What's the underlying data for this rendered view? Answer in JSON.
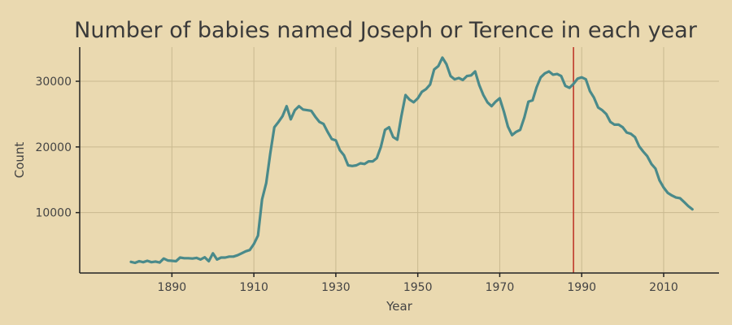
{
  "colors": {
    "background": "#ead9b0",
    "series": "#4a8a8a",
    "refline": "#c0392b",
    "grid": "#c9b98f"
  },
  "chart_data": {
    "type": "line",
    "title": "Number of babies named Joseph or Terence in each year",
    "xlabel": "Year",
    "ylabel": "Count",
    "xlim": [
      1867.5,
      2023.5
    ],
    "ylim": [
      800,
      35200
    ],
    "xticks": [
      1890,
      1910,
      1930,
      1950,
      1970,
      1990,
      2010
    ],
    "yticks": [
      10000,
      20000,
      30000
    ],
    "xtick_labels": [
      "1890",
      "1910",
      "1930",
      "1950",
      "1970",
      "1990",
      "2010"
    ],
    "ytick_labels": [
      "10000",
      "20000",
      "30000"
    ],
    "grid": true,
    "reference_line_x": 1988,
    "series": [
      {
        "x": [
          1880,
          1881,
          1882,
          1883,
          1884,
          1885,
          1886,
          1887,
          1888,
          1889,
          1890,
          1891,
          1892,
          1893,
          1894,
          1895,
          1896,
          1897,
          1898,
          1899,
          1900,
          1901,
          1902,
          1903,
          1904,
          1905,
          1906,
          1907,
          1908,
          1909,
          1910,
          1911,
          1912,
          1913,
          1914,
          1915,
          1916,
          1917,
          1918,
          1919,
          1920,
          1921,
          1922,
          1923,
          1924,
          1925,
          1926,
          1927,
          1928,
          1929,
          1930,
          1931,
          1932,
          1933,
          1934,
          1935,
          1936,
          1937,
          1938,
          1939,
          1940,
          1941,
          1942,
          1943,
          1944,
          1945,
          1946,
          1947,
          1948,
          1949,
          1950,
          1951,
          1952,
          1953,
          1954,
          1955,
          1956,
          1957,
          1958,
          1959,
          1960,
          1961,
          1962,
          1963,
          1964,
          1965,
          1966,
          1967,
          1968,
          1969,
          1970,
          1971,
          1972,
          1973,
          1974,
          1975,
          1976,
          1977,
          1978,
          1979,
          1980,
          1981,
          1982,
          1983,
          1984,
          1985,
          1986,
          1987,
          1988,
          1989,
          1990,
          1991,
          1992,
          1993,
          1994,
          1995,
          1996,
          1997,
          1998,
          1999,
          2000,
          2001,
          2002,
          2003,
          2004,
          2005,
          2006,
          2007,
          2008,
          2009,
          2010,
          2011,
          2012,
          2013,
          2014,
          2015,
          2016,
          2017
        ],
        "values": [
          2500,
          2350,
          2600,
          2450,
          2650,
          2450,
          2550,
          2400,
          3000,
          2700,
          2650,
          2600,
          3150,
          3050,
          3050,
          3000,
          3100,
          2850,
          3200,
          2600,
          3800,
          2850,
          3150,
          3150,
          3300,
          3300,
          3500,
          3800,
          4100,
          4300,
          5200,
          6500,
          12000,
          14500,
          19000,
          23000,
          23800,
          24700,
          26200,
          24200,
          25600,
          26200,
          25700,
          25600,
          25500,
          24600,
          23800,
          23500,
          22300,
          21200,
          21000,
          19500,
          18700,
          17200,
          17100,
          17200,
          17500,
          17400,
          17800,
          17800,
          18300,
          20000,
          22600,
          23000,
          21500,
          21100,
          24700,
          27900,
          27200,
          26800,
          27400,
          28400,
          28800,
          29500,
          31800,
          32300,
          33600,
          32600,
          30800,
          30300,
          30500,
          30200,
          30800,
          30900,
          31500,
          29400,
          27900,
          26800,
          26200,
          26900,
          27400,
          25400,
          23100,
          21800,
          22300,
          22600,
          24500,
          26900,
          27100,
          29100,
          30600,
          31200,
          31500,
          31000,
          31100,
          30800,
          29300,
          29000,
          29600,
          30400,
          30600,
          30300,
          28500,
          27500,
          26000,
          25600,
          25000,
          23800,
          23400,
          23400,
          23000,
          22200,
          22000,
          21500,
          20100,
          19300,
          18600,
          17400,
          16700,
          14900,
          13800,
          13000,
          12600,
          12300,
          12200,
          11600,
          11000,
          10500
        ]
      }
    ]
  }
}
